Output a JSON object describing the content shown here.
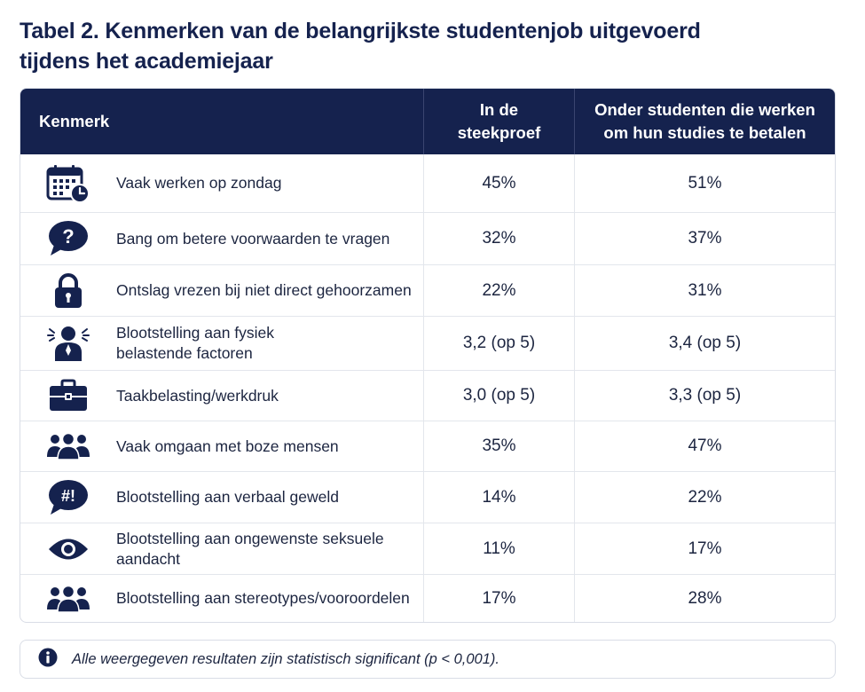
{
  "title": {
    "line1": "Tabel 2. Kenmerken van de belangrijkste studentenjob uitgevoerd",
    "line2": "tijdens het academiejaar"
  },
  "columns": {
    "kenmerk": "Kenmerk",
    "sample_line1": "In de",
    "sample_line2": "steekproef",
    "paying_line1": "Onder studenten die werken",
    "paying_line2": "om hun studies te betalen"
  },
  "rows": [
    {
      "icon": "calendar-clock-icon",
      "label1": "Vaak werken op zondag",
      "label2": "",
      "sample": "45%",
      "paying": "51%"
    },
    {
      "icon": "question-bubble-icon",
      "label1": "Bang om betere voorwaarden te vragen",
      "label2": "",
      "sample": "32%",
      "paying": "37%"
    },
    {
      "icon": "padlock-icon",
      "label1": "Ontslag vrezen bij niet direct gehoorzamen",
      "label2": "",
      "sample": "22%",
      "paying": "31%"
    },
    {
      "icon": "stressed-person-icon",
      "label1": "Blootstelling aan fysiek",
      "label2": "belastende factoren",
      "sample": "3,2 (op 5)",
      "paying": "3,4 (op 5)"
    },
    {
      "icon": "briefcase-icon",
      "label1": "Taakbelasting/werkdruk",
      "label2": "",
      "sample": "3,0 (op 5)",
      "paying": "3,3 (op 5)"
    },
    {
      "icon": "group-icon",
      "label1": "Vaak omgaan met boze mensen",
      "label2": "",
      "sample": "35%",
      "paying": "47%"
    },
    {
      "icon": "exclamation-bubble-icon",
      "label1": "Blootstelling aan verbaal geweld",
      "label2": "",
      "sample": "14%",
      "paying": "22%"
    },
    {
      "icon": "eye-icon",
      "label1": "Blootstelling aan ongewenste seksuele",
      "label2": "aandacht",
      "sample": "11%",
      "paying": "17%"
    },
    {
      "icon": "group-icon",
      "label1": "Blootstelling aan stereotypes/vooroordelen",
      "label2": "",
      "sample": "17%",
      "paying": "28%"
    }
  ],
  "note": {
    "icon": "info-icon",
    "text": "Alle weergegeven resultaten zijn statistisch significant (p < 0,001)."
  },
  "colors": {
    "navy": "#15224e",
    "border": "#d9dde6"
  }
}
